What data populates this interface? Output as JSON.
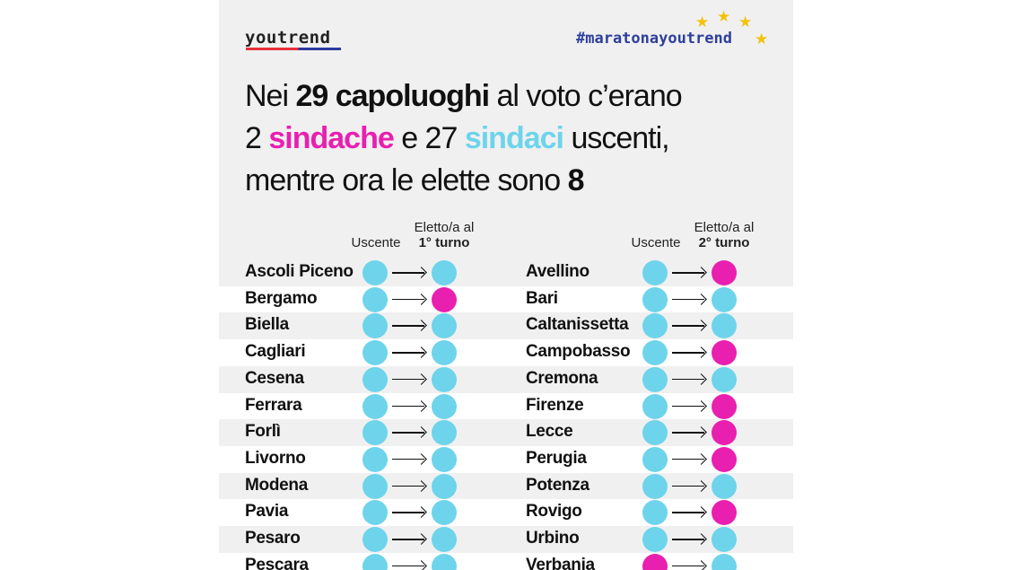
{
  "brand": {
    "logo": "youtrend",
    "hashtag": "#maratonayoutrend"
  },
  "colors": {
    "female": "#e91fb0",
    "male": "#6dd4eb",
    "accent_blue": "#2d3f9c",
    "star": "#f2c20c"
  },
  "headline": {
    "l1a": "Nei ",
    "l1b": "29 capoluoghi",
    "l1c": " al voto c’erano",
    "l2a": "2 ",
    "l2b": "sindache",
    "l2c": " e 27 ",
    "l2d": "sindaci",
    "l2e": " uscenti,",
    "l3a": "mentre ora le elette sono ",
    "l3b": "8"
  },
  "columns": {
    "left": {
      "outgoing": "Uscente",
      "elected_top": "Eletto/a al",
      "elected_bottom": "1° turno"
    },
    "right": {
      "outgoing": "Uscente",
      "elected_top": "Eletto/a al",
      "elected_bottom": "2° turno"
    }
  },
  "first_round": [
    {
      "city": "Ascoli Piceno",
      "outgoing": "m",
      "elected": "m"
    },
    {
      "city": "Bergamo",
      "outgoing": "m",
      "elected": "f"
    },
    {
      "city": "Biella",
      "outgoing": "m",
      "elected": "m"
    },
    {
      "city": "Cagliari",
      "outgoing": "m",
      "elected": "m"
    },
    {
      "city": "Cesena",
      "outgoing": "m",
      "elected": "m"
    },
    {
      "city": "Ferrara",
      "outgoing": "m",
      "elected": "m"
    },
    {
      "city": "Forlì",
      "outgoing": "m",
      "elected": "m"
    },
    {
      "city": "Livorno",
      "outgoing": "m",
      "elected": "m"
    },
    {
      "city": "Modena",
      "outgoing": "m",
      "elected": "m"
    },
    {
      "city": "Pavia",
      "outgoing": "m",
      "elected": "m"
    },
    {
      "city": "Pesaro",
      "outgoing": "m",
      "elected": "m"
    },
    {
      "city": "Pescara",
      "outgoing": "m",
      "elected": "m"
    }
  ],
  "second_round": [
    {
      "city": "Avellino",
      "outgoing": "m",
      "elected": "f"
    },
    {
      "city": "Bari",
      "outgoing": "m",
      "elected": "m"
    },
    {
      "city": "Caltanissetta",
      "outgoing": "m",
      "elected": "m"
    },
    {
      "city": "Campobasso",
      "outgoing": "m",
      "elected": "f"
    },
    {
      "city": "Cremona",
      "outgoing": "m",
      "elected": "m"
    },
    {
      "city": "Firenze",
      "outgoing": "m",
      "elected": "f"
    },
    {
      "city": "Lecce",
      "outgoing": "m",
      "elected": "f"
    },
    {
      "city": "Perugia",
      "outgoing": "m",
      "elected": "f"
    },
    {
      "city": "Potenza",
      "outgoing": "m",
      "elected": "m"
    },
    {
      "city": "Rovigo",
      "outgoing": "m",
      "elected": "f"
    },
    {
      "city": "Urbino",
      "outgoing": "m",
      "elected": "m"
    },
    {
      "city": "Verbania",
      "outgoing": "f",
      "elected": "m"
    }
  ]
}
